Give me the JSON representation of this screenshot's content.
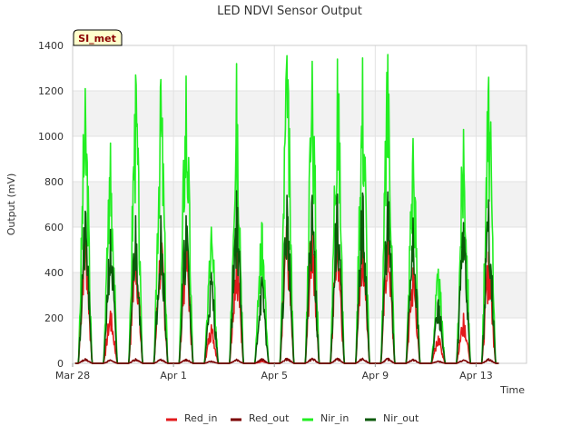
{
  "chart_data": {
    "type": "line",
    "title": "LED NDVI Sensor Output",
    "xlabel": "Time",
    "ylabel": "Output (mV)",
    "badge": "SI_met",
    "ylim": [
      0,
      1400
    ],
    "yticks": [
      0,
      200,
      400,
      600,
      800,
      1000,
      1200,
      1400
    ],
    "xlim": [
      "2024-03-28",
      "2024-04-15"
    ],
    "xticks": [
      {
        "date": "2024-03-28",
        "label": "Mar 28"
      },
      {
        "date": "2024-04-01",
        "label": "Apr 1"
      },
      {
        "date": "2024-04-05",
        "label": "Apr 5"
      },
      {
        "date": "2024-04-09",
        "label": "Apr 9"
      },
      {
        "date": "2024-04-13",
        "label": "Apr 13"
      }
    ],
    "grid": true,
    "legend_position": "bottom",
    "series": [
      {
        "name": "Red_in",
        "color": "#e31a1c",
        "daily_peaks": [
          610,
          230,
          540,
          560,
          560,
          170,
          520,
          10,
          610,
          630,
          640,
          630,
          620,
          420,
          120,
          220,
          490
        ]
      },
      {
        "name": "Red_out",
        "color": "#7b0000",
        "daily_peaks": [
          20,
          15,
          20,
          18,
          18,
          10,
          18,
          20,
          22,
          22,
          22,
          22,
          22,
          18,
          10,
          15,
          20
        ]
      },
      {
        "name": "Nir_in",
        "color": "#22ee22",
        "daily_peaks": [
          1210,
          970,
          1270,
          1250,
          1265,
          600,
          1320,
          620,
          1355,
          1330,
          1340,
          1345,
          1360,
          990,
          415,
          1030,
          1260
        ]
      },
      {
        "name": "Nir_out",
        "color": "#0b5a0b",
        "daily_peaks": [
          670,
          590,
          650,
          650,
          650,
          400,
          760,
          380,
          740,
          740,
          745,
          750,
          755,
          640,
          280,
          620,
          720
        ]
      }
    ]
  }
}
